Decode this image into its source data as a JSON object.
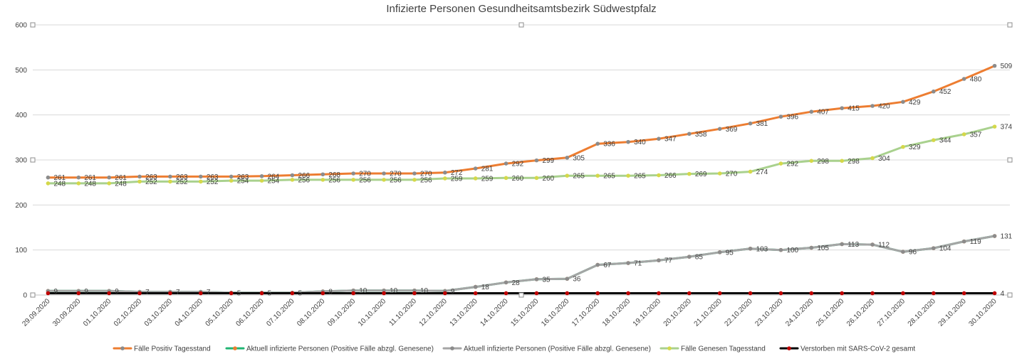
{
  "chart_data": {
    "type": "line",
    "title": "Infizierte Personen Gesundheitsamtsbezirk Südwestpfalz",
    "xlabel": "",
    "ylabel": "",
    "ylim": [
      0,
      600
    ],
    "yticks": [
      0,
      100,
      200,
      300,
      400,
      500,
      600
    ],
    "grid": true,
    "legend_position": "bottom",
    "categories": [
      "29.09.2020",
      "30.09.2020",
      "01.10.2020",
      "02.10.2020",
      "03.10.2020",
      "04.10.2020",
      "05.10.2020",
      "06.10.2020",
      "07.10.2020",
      "08.10.2020",
      "09.10.2020",
      "10.10.2020",
      "11.10.2020",
      "12.10.2020",
      "13.10.2020",
      "14.10.2020",
      "15.10.2020",
      "16.10.2020",
      "17.10.2020",
      "18.10.2020",
      "19.10.2020",
      "20.10.2020",
      "21.10.2020",
      "22.10.2020",
      "23.10.2020",
      "24.10.2020",
      "25.10.2020",
      "26.10.2020",
      "27.10.2020",
      "28.10.2020",
      "29.10.2020",
      "30.10.2020"
    ],
    "series": [
      {
        "name": "Fälle Positiv Tagesstand",
        "color": "#ED7D31",
        "marker_color": "#8C8C8C",
        "values": [
          261,
          261,
          261,
          263,
          263,
          263,
          263,
          264,
          266,
          268,
          270,
          270,
          270,
          272,
          281,
          292,
          299,
          305,
          336,
          340,
          347,
          358,
          369,
          381,
          396,
          407,
          415,
          420,
          429,
          452,
          480,
          509
        ]
      },
      {
        "name": "Aktuell infizierte Personen (Positive Fälle abzgl. Genesene)",
        "color": "#21B573",
        "marker_color": "#ED7D31",
        "values": [
          9,
          9,
          9,
          7,
          7,
          7,
          5,
          5,
          5,
          8,
          10,
          10,
          10,
          9,
          18,
          28,
          35,
          36,
          67,
          71,
          77,
          85,
          95,
          103,
          100,
          105,
          113,
          112,
          96,
          104,
          119,
          131
        ]
      },
      {
        "name": "Aktuell infizierte Personen (Positive Fälle abzgl. Genesene)",
        "color": "#A5A5A5",
        "marker_color": "#8C8C8C",
        "values": [
          9,
          9,
          9,
          7,
          7,
          7,
          5,
          5,
          5,
          8,
          10,
          10,
          10,
          9,
          18,
          28,
          35,
          36,
          67,
          71,
          77,
          85,
          95,
          103,
          100,
          105,
          113,
          112,
          96,
          104,
          119,
          131
        ]
      },
      {
        "name": "Fälle Genesen Tagesstand",
        "color": "#A9D18E",
        "marker_color": "#D4D84A",
        "values": [
          248,
          248,
          248,
          252,
          252,
          252,
          254,
          254,
          256,
          256,
          256,
          256,
          256,
          259,
          259,
          260,
          260,
          265,
          265,
          265,
          266,
          269,
          270,
          274,
          292,
          298,
          298,
          304,
          329,
          344,
          357,
          374
        ]
      },
      {
        "name": "Verstorben mit SARS-CoV-2 gesamt",
        "color": "#000000",
        "marker_color": "#C00000",
        "values": [
          4,
          4,
          4,
          4,
          4,
          4,
          4,
          4,
          4,
          4,
          4,
          4,
          4,
          4,
          4,
          4,
          4,
          4,
          4,
          4,
          4,
          4,
          4,
          4,
          4,
          4,
          4,
          4,
          4,
          4,
          4,
          4
        ]
      }
    ],
    "labeled_series": [
      0,
      2,
      3
    ],
    "end_labels": {
      "4": "4"
    }
  }
}
